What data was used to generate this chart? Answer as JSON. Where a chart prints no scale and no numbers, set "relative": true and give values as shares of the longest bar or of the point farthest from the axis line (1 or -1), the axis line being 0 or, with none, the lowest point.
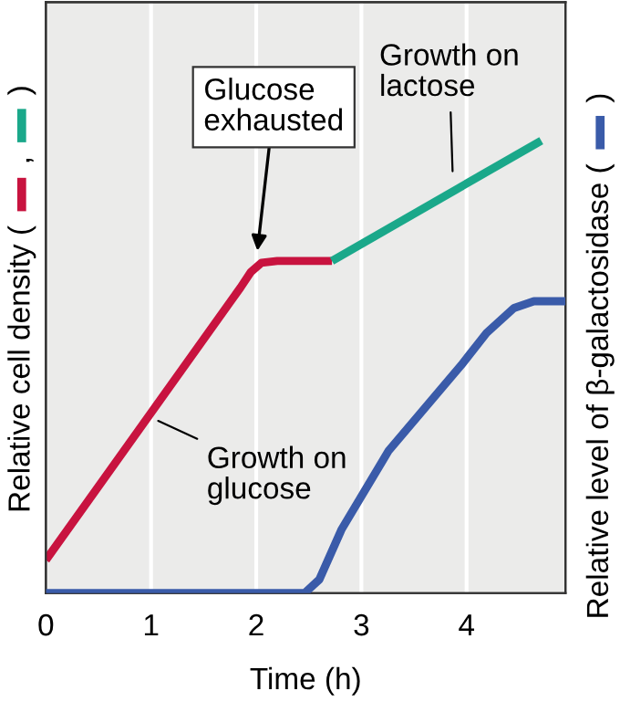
{
  "chart_data": {
    "type": "line",
    "relative": true,
    "xlabel": "Time (h)",
    "ylabel": "Relative cell density (  ,  )",
    "y2label": "Relative level of β-galactosidase (  )",
    "xlim": [
      0,
      4.94
    ],
    "xticks": [
      0,
      1,
      2,
      3,
      4
    ],
    "grid": "x",
    "marker": "none",
    "line_style": "solid",
    "tick_labels": "x",
    "series": [
      {
        "color": "#c8133f",
        "x": [
          0,
          1.85,
          1.95,
          2.05,
          2.2,
          2.72
        ],
        "values": [
          0.073,
          0.675,
          0.71,
          0.73,
          0.734,
          0.734
        ]
      },
      {
        "color": "#1aa88a",
        "x": [
          2.72,
          4.71
        ],
        "values": [
          0.734,
          1.0
        ]
      },
      {
        "color": "#3a5ba9",
        "axis": "y2",
        "x": [
          0,
          2.46,
          2.6,
          2.81,
          3.26,
          3.95,
          4.19,
          4.45,
          4.64,
          4.94
        ],
        "values": [
          0,
          0,
          0.03,
          0.14,
          0.315,
          0.504,
          0.575,
          0.63,
          0.645,
          0.645
        ]
      }
    ],
    "annotations": [
      {
        "text": "Glucose\nexhausted",
        "x": 2.0,
        "y": 0.734
      },
      {
        "text": "Growth on\nlactose",
        "x": 3.87,
        "y": 0.91
      },
      {
        "text": "Growth on\nglucose",
        "x": 0.98,
        "y": 0.39
      }
    ]
  }
}
